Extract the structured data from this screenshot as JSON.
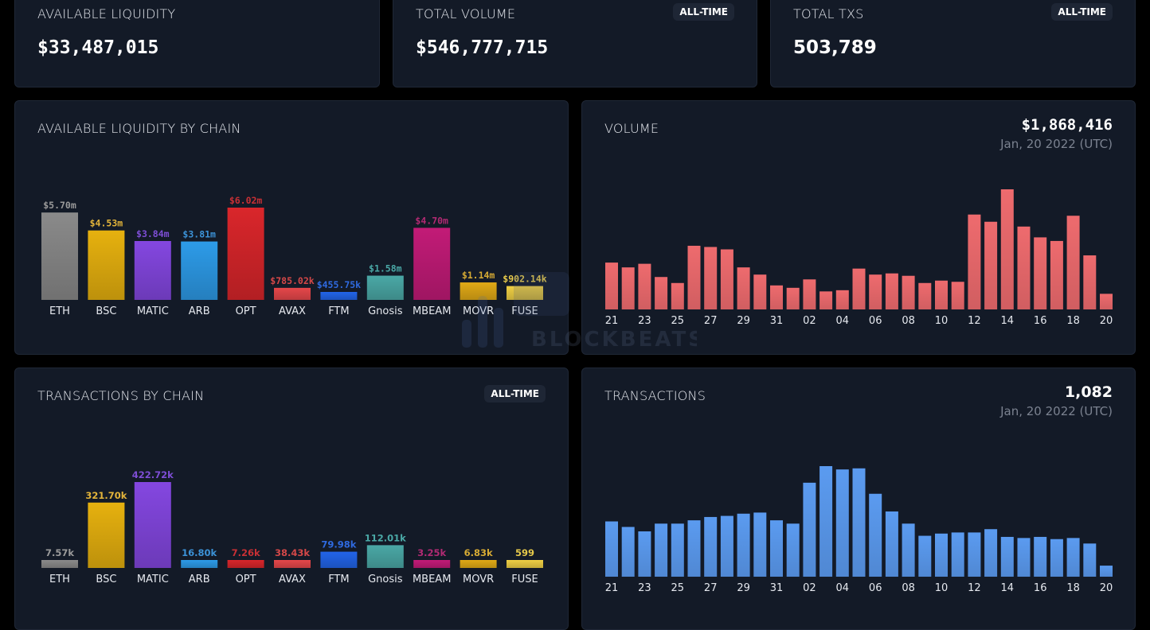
{
  "stats": [
    {
      "label": "AVAILABLE LIQUIDITY",
      "value": "$33,487,015",
      "badge": null
    },
    {
      "label": "TOTAL VOLUME",
      "value": "$546,777,715",
      "badge": "ALL-TIME"
    },
    {
      "label": "TOTAL TXS",
      "value": "503,789",
      "badge": "ALL-TIME"
    }
  ],
  "panels": {
    "liquidity": {
      "title": "AVAILABLE LIQUIDITY BY CHAIN"
    },
    "volume": {
      "title": "VOLUME",
      "value": "$1,868,416",
      "date": "Jan, 20 2022 (UTC)"
    },
    "txs_chain": {
      "title": "TRANSACTIONS BY CHAIN",
      "badge": "ALL-TIME"
    },
    "transactions": {
      "title": "TRANSACTIONS",
      "value": "1,082",
      "date": "Jan, 20 2022 (UTC)"
    }
  },
  "watermark": "BLOCKBEATS",
  "chart_data": [
    {
      "id": "liquidity_by_chain",
      "type": "bar",
      "title": "AVAILABLE LIQUIDITY BY CHAIN",
      "categories": [
        "ETH",
        "BSC",
        "MATIC",
        "ARB",
        "OPT",
        "AVAX",
        "FTM",
        "Gnosis",
        "MBEAM",
        "MOVR",
        "FUSE"
      ],
      "values": [
        5700000,
        4530000,
        3840000,
        3810000,
        6020000,
        785020,
        455750,
        1580000,
        4700000,
        1140000,
        902140
      ],
      "labels": [
        "$5.70m",
        "$4.53m",
        "$3.84m",
        "$3.81m",
        "$6.02m",
        "$785.02k",
        "$455.75k",
        "$1.58m",
        "$4.70m",
        "$1.14m",
        "$902.14k"
      ],
      "colors": [
        "#8a8a8a",
        "#e6b10f",
        "#8447e0",
        "#2d9be8",
        "#d9262b",
        "#e5474a",
        "#2264e8",
        "#4aa8a6",
        "#c21b77",
        "#e0a916",
        "#efcf44"
      ],
      "label_colors": [
        "#9a9a9a",
        "#e3b43a",
        "#7e4ed6",
        "#3c93d8",
        "#c83035",
        "#d44848",
        "#2f6ae0",
        "#4aa8a6",
        "#b22a73",
        "#d7ab34",
        "#e6c94a"
      ],
      "ylim": [
        0,
        6020000
      ],
      "xlabel": "",
      "ylabel": ""
    },
    {
      "id": "volume_daily",
      "type": "bar",
      "title": "VOLUME",
      "x": [
        "21",
        "22",
        "23",
        "24",
        "25",
        "26",
        "27",
        "28",
        "29",
        "30",
        "31",
        "01",
        "02",
        "03",
        "04",
        "05",
        "06",
        "07",
        "08",
        "09",
        "10",
        "11",
        "12",
        "13",
        "14",
        "15",
        "16",
        "17",
        "18",
        "19",
        "20"
      ],
      "tick_labels": [
        "21",
        "23",
        "25",
        "27",
        "29",
        "31",
        "02",
        "04",
        "06",
        "08",
        "10",
        "12",
        "14",
        "16",
        "18",
        "20"
      ],
      "values": [
        0.39,
        0.35,
        0.38,
        0.27,
        0.22,
        0.53,
        0.52,
        0.5,
        0.35,
        0.29,
        0.2,
        0.18,
        0.25,
        0.15,
        0.16,
        0.34,
        0.29,
        0.3,
        0.28,
        0.22,
        0.24,
        0.23,
        0.79,
        0.73,
        1.0,
        0.69,
        0.6,
        0.57,
        0.78,
        0.45,
        0.13
      ],
      "value_unit": "relative to max",
      "color": "#ee6b6e"
    },
    {
      "id": "txs_by_chain",
      "type": "bar",
      "title": "TRANSACTIONS BY CHAIN",
      "categories": [
        "ETH",
        "BSC",
        "MATIC",
        "ARB",
        "OPT",
        "AVAX",
        "FTM",
        "Gnosis",
        "MBEAM",
        "MOVR",
        "FUSE"
      ],
      "values": [
        7570,
        321700,
        422720,
        16800,
        7260,
        38430,
        79980,
        112010,
        3250,
        6830,
        599
      ],
      "labels": [
        "7.57k",
        "321.70k",
        "422.72k",
        "16.80k",
        "7.26k",
        "38.43k",
        "79.98k",
        "112.01k",
        "3.25k",
        "6.83k",
        "599"
      ],
      "colors": [
        "#8a8a8a",
        "#e6b10f",
        "#8447e0",
        "#2d9be8",
        "#d9262b",
        "#e5474a",
        "#2264e8",
        "#4aa8a6",
        "#c21b77",
        "#e0a916",
        "#efcf44"
      ],
      "label_colors": [
        "#9a9a9a",
        "#e3b43a",
        "#7e4ed6",
        "#3c93d8",
        "#c83035",
        "#d44848",
        "#2f6ae0",
        "#4aa8a6",
        "#b22a73",
        "#d7ab34",
        "#e6c94a"
      ],
      "ylim": [
        0,
        422720
      ]
    },
    {
      "id": "transactions_daily",
      "type": "bar",
      "title": "TRANSACTIONS",
      "x": [
        "21",
        "22",
        "23",
        "24",
        "25",
        "26",
        "27",
        "28",
        "29",
        "30",
        "31",
        "01",
        "02",
        "03",
        "04",
        "05",
        "06",
        "07",
        "08",
        "09",
        "10",
        "11",
        "12",
        "13",
        "14",
        "15",
        "16",
        "17",
        "18",
        "19",
        "20"
      ],
      "tick_labels": [
        "21",
        "23",
        "25",
        "27",
        "29",
        "31",
        "02",
        "04",
        "06",
        "08",
        "10",
        "12",
        "14",
        "16",
        "18",
        "20"
      ],
      "values": [
        0.5,
        0.45,
        0.41,
        0.48,
        0.48,
        0.51,
        0.54,
        0.55,
        0.57,
        0.58,
        0.51,
        0.48,
        0.85,
        1.0,
        0.97,
        0.98,
        0.75,
        0.59,
        0.48,
        0.37,
        0.39,
        0.4,
        0.4,
        0.43,
        0.36,
        0.35,
        0.36,
        0.34,
        0.35,
        0.3,
        0.1
      ],
      "value_unit": "relative to max",
      "color": "#5b9bf0"
    }
  ]
}
